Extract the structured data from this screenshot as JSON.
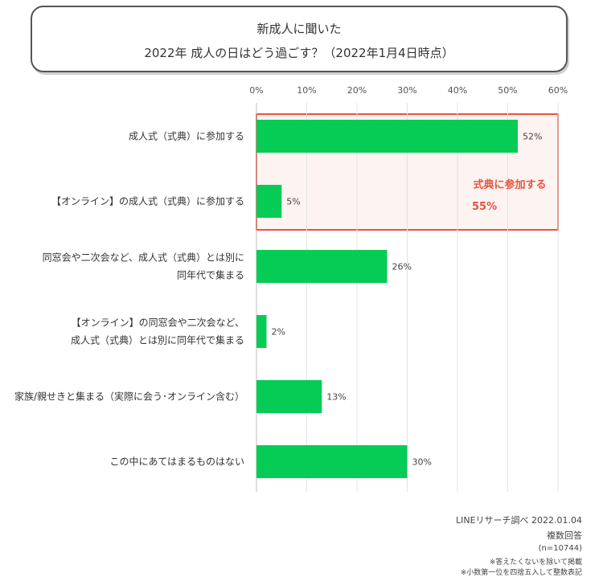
{
  "chart_data": {
    "type": "bar",
    "orientation": "horizontal",
    "title_line1": "新成人に聞いた",
    "title_line2": "2022年 成人の日はどう過ごす？（2022年1月4日時点）",
    "xlim": [
      0,
      60
    ],
    "x_ticks": [
      "0%",
      "10%",
      "20%",
      "30%",
      "40%",
      "50%",
      "60%"
    ],
    "grid": true,
    "bar_color": "#06CC55",
    "categories": [
      [
        "成人式（式典）に参加する"
      ],
      [
        "【オンライン】の成人式（式典）に参加する"
      ],
      [
        "同窓会や二次会など、成人式（式典）とは別に",
        "同年代で集まる"
      ],
      [
        "【オンライン】の同窓会や二次会など、",
        "成人式（式典）とは別に同年代で集まる"
      ],
      [
        "家族/親せきと集まる（実際に会う･オンライン含む）"
      ],
      [
        "この中にあてはまるものはない"
      ]
    ],
    "values": [
      52,
      5,
      26,
      2,
      13,
      30
    ],
    "value_labels": [
      "52%",
      "5%",
      "26%",
      "2%",
      "13%",
      "30%"
    ],
    "highlight": {
      "covers_categories": [
        0,
        1
      ],
      "label": "式典に参加する",
      "value": "55%",
      "color": "#E8533F"
    }
  },
  "source": {
    "line1": "LINEリサーチ調べ 2022.01.04",
    "line2": "複数回答",
    "line3": "(n=10744)",
    "line4": "※答えたくないを除いて掲載",
    "line5": "※小数第一位を四捨五入して整数表記"
  }
}
